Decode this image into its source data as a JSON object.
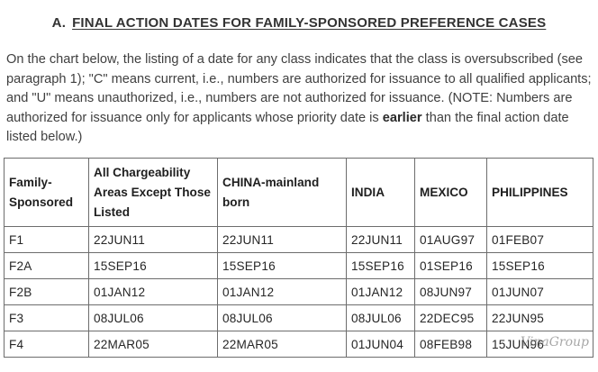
{
  "heading": {
    "prefix": "A.",
    "title": "FINAL ACTION DATES FOR FAMILY-SPONSORED PREFERENCE CASES"
  },
  "intro": {
    "part1": "On the chart below, the listing of a date for any class indicates that the class is oversubscribed (see paragraph 1); \"C\" means current, i.e., numbers are authorized for issuance to all qualified applicants; and \"U\" means unauthorized, i.e., numbers are not authorized for issuance. (NOTE: Numbers are authorized for issuance only for applicants whose priority date is ",
    "emphasis": "earlier",
    "part2": " than the final action date listed below.)"
  },
  "table": {
    "headers": [
      "Family-Sponsored",
      "All Chargeability Areas Except Those Listed",
      "CHINA-mainland born",
      "INDIA",
      "MEXICO",
      "PHILIPPINES"
    ],
    "rows": [
      [
        "F1",
        "22JUN11",
        "22JUN11",
        "22JUN11",
        "01AUG97",
        "01FEB07"
      ],
      [
        "F2A",
        "15SEP16",
        "15SEP16",
        "15SEP16",
        "01SEP16",
        "15SEP16"
      ],
      [
        "F2B",
        "01JAN12",
        "01JAN12",
        "01JAN12",
        "08JUN97",
        "01JUN07"
      ],
      [
        "F3",
        "08JUL06",
        "08JUL06",
        "08JUL06",
        "22DEC95",
        "22JUN95"
      ],
      [
        "F4",
        "22MAR05",
        "22MAR05",
        "01JUN04",
        "08FEB98",
        "15JUN96"
      ]
    ]
  },
  "watermark": "VinaGroup"
}
